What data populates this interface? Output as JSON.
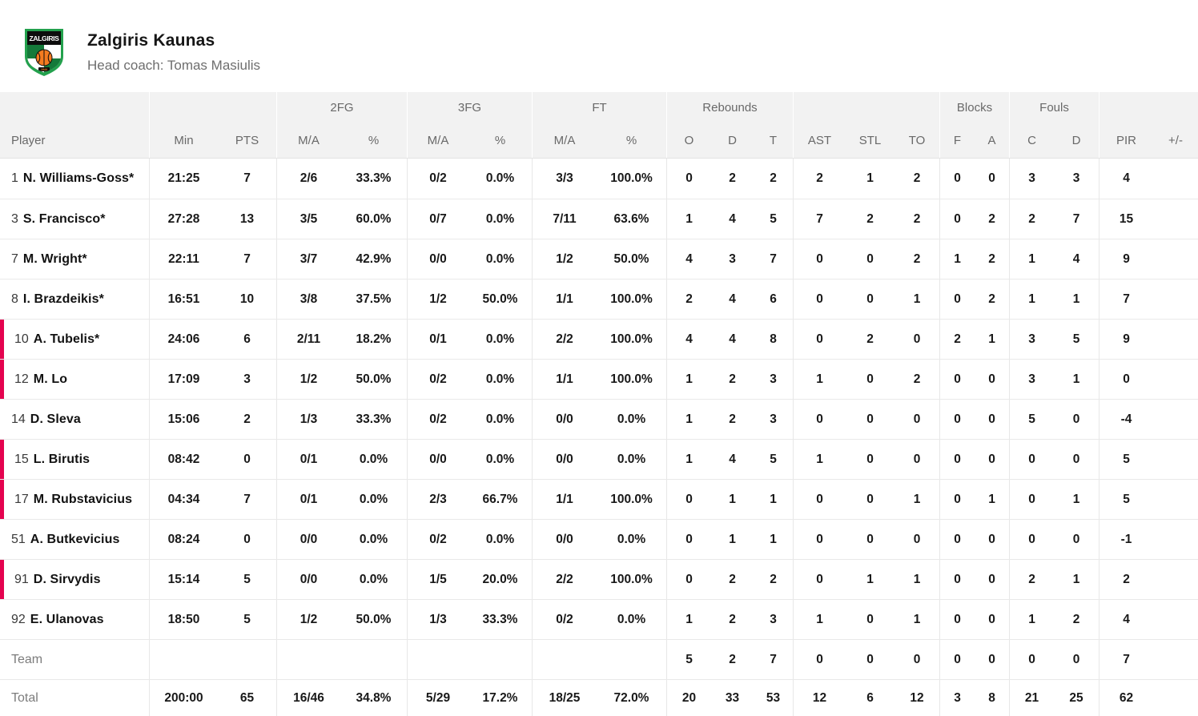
{
  "team": {
    "name": "Zalgiris Kaunas",
    "coach": "Head coach: Tomas Masiulis",
    "logo_text": "ZALGIRIS",
    "logo_year": "1944"
  },
  "colors": {
    "on_court_red": "#e4034f",
    "logo_green_border": "#23a14d",
    "logo_green_dark": "#157a3a",
    "logo_orange": "#f47b20",
    "logo_black": "#0d0d0d",
    "header_bg": "#f2f2f2"
  },
  "table": {
    "groups": {
      "fg2": "2FG",
      "fg3": "3FG",
      "ft": "FT",
      "rebounds": "Rebounds",
      "blocks": "Blocks",
      "fouls": "Fouls"
    },
    "columns": {
      "player": "Player",
      "min": "Min",
      "pts": "PTS",
      "ma": "M/A",
      "pct": "%",
      "reb_o": "O",
      "reb_d": "D",
      "reb_t": "T",
      "ast": "AST",
      "stl": "STL",
      "to": "TO",
      "blk_f": "F",
      "blk_a": "A",
      "foul_c": "C",
      "foul_d": "D",
      "pir": "PIR",
      "plus_minus": "+/-"
    },
    "stat_names": [
      "min",
      "pts",
      "2fg-ma",
      "2fg-pct",
      "3fg-ma",
      "3fg-pct",
      "ft-ma",
      "ft-pct",
      "reb-o",
      "reb-d",
      "reb-t",
      "ast",
      "stl",
      "to",
      "blk-f",
      "blk-a",
      "foul-c",
      "foul-d",
      "pir",
      "plus-minus"
    ],
    "players": [
      {
        "num": "1",
        "name": "N. Williams-Goss*",
        "on_court": false,
        "stats": [
          "21:25",
          "7",
          "2/6",
          "33.3%",
          "0/2",
          "0.0%",
          "3/3",
          "100.0%",
          "0",
          "2",
          "2",
          "2",
          "1",
          "2",
          "0",
          "0",
          "3",
          "3",
          "4",
          ""
        ]
      },
      {
        "num": "3",
        "name": "S. Francisco*",
        "on_court": false,
        "stats": [
          "27:28",
          "13",
          "3/5",
          "60.0%",
          "0/7",
          "0.0%",
          "7/11",
          "63.6%",
          "1",
          "4",
          "5",
          "7",
          "2",
          "2",
          "0",
          "2",
          "2",
          "7",
          "15",
          ""
        ]
      },
      {
        "num": "7",
        "name": "M. Wright*",
        "on_court": false,
        "stats": [
          "22:11",
          "7",
          "3/7",
          "42.9%",
          "0/0",
          "0.0%",
          "1/2",
          "50.0%",
          "4",
          "3",
          "7",
          "0",
          "0",
          "2",
          "1",
          "2",
          "1",
          "4",
          "9",
          ""
        ]
      },
      {
        "num": "8",
        "name": "I. Brazdeikis*",
        "on_court": false,
        "stats": [
          "16:51",
          "10",
          "3/8",
          "37.5%",
          "1/2",
          "50.0%",
          "1/1",
          "100.0%",
          "2",
          "4",
          "6",
          "0",
          "0",
          "1",
          "0",
          "2",
          "1",
          "1",
          "7",
          ""
        ]
      },
      {
        "num": "10",
        "name": "A. Tubelis*",
        "on_court": true,
        "stats": [
          "24:06",
          "6",
          "2/11",
          "18.2%",
          "0/1",
          "0.0%",
          "2/2",
          "100.0%",
          "4",
          "4",
          "8",
          "0",
          "2",
          "0",
          "2",
          "1",
          "3",
          "5",
          "9",
          ""
        ]
      },
      {
        "num": "12",
        "name": "M. Lo",
        "on_court": true,
        "stats": [
          "17:09",
          "3",
          "1/2",
          "50.0%",
          "0/2",
          "0.0%",
          "1/1",
          "100.0%",
          "1",
          "2",
          "3",
          "1",
          "0",
          "2",
          "0",
          "0",
          "3",
          "1",
          "0",
          ""
        ]
      },
      {
        "num": "14",
        "name": "D. Sleva",
        "on_court": false,
        "stats": [
          "15:06",
          "2",
          "1/3",
          "33.3%",
          "0/2",
          "0.0%",
          "0/0",
          "0.0%",
          "1",
          "2",
          "3",
          "0",
          "0",
          "0",
          "0",
          "0",
          "5",
          "0",
          "-4",
          ""
        ]
      },
      {
        "num": "15",
        "name": "L. Birutis",
        "on_court": true,
        "stats": [
          "08:42",
          "0",
          "0/1",
          "0.0%",
          "0/0",
          "0.0%",
          "0/0",
          "0.0%",
          "1",
          "4",
          "5",
          "1",
          "0",
          "0",
          "0",
          "0",
          "0",
          "0",
          "5",
          ""
        ]
      },
      {
        "num": "17",
        "name": "M. Rubstavicius",
        "on_court": true,
        "stats": [
          "04:34",
          "7",
          "0/1",
          "0.0%",
          "2/3",
          "66.7%",
          "1/1",
          "100.0%",
          "0",
          "1",
          "1",
          "0",
          "0",
          "1",
          "0",
          "1",
          "0",
          "1",
          "5",
          ""
        ]
      },
      {
        "num": "51",
        "name": "A. Butkevicius",
        "on_court": false,
        "stats": [
          "08:24",
          "0",
          "0/0",
          "0.0%",
          "0/2",
          "0.0%",
          "0/0",
          "0.0%",
          "0",
          "1",
          "1",
          "0",
          "0",
          "0",
          "0",
          "0",
          "0",
          "0",
          "-1",
          ""
        ]
      },
      {
        "num": "91",
        "name": "D. Sirvydis",
        "on_court": true,
        "stats": [
          "15:14",
          "5",
          "0/0",
          "0.0%",
          "1/5",
          "20.0%",
          "2/2",
          "100.0%",
          "0",
          "2",
          "2",
          "0",
          "1",
          "1",
          "0",
          "0",
          "2",
          "1",
          "2",
          ""
        ]
      },
      {
        "num": "92",
        "name": "E. Ulanovas",
        "on_court": false,
        "stats": [
          "18:50",
          "5",
          "1/2",
          "50.0%",
          "1/3",
          "33.3%",
          "0/2",
          "0.0%",
          "1",
          "2",
          "3",
          "1",
          "0",
          "1",
          "0",
          "0",
          "1",
          "2",
          "4",
          ""
        ]
      }
    ],
    "team_row": {
      "label": "Team",
      "stats": [
        "",
        "",
        "",
        "",
        "",
        "",
        "",
        "",
        "5",
        "2",
        "7",
        "0",
        "0",
        "0",
        "0",
        "0",
        "0",
        "0",
        "7",
        ""
      ]
    },
    "total_row": {
      "label": "Total",
      "stats": [
        "200:00",
        "65",
        "16/46",
        "34.8%",
        "5/29",
        "17.2%",
        "18/25",
        "72.0%",
        "20",
        "33",
        "53",
        "12",
        "6",
        "12",
        "3",
        "8",
        "21",
        "25",
        "62",
        ""
      ]
    }
  }
}
